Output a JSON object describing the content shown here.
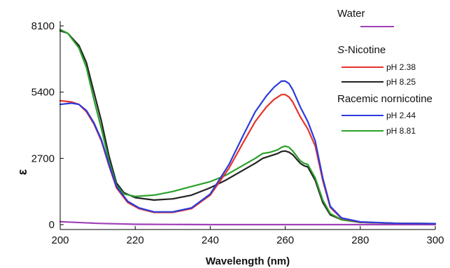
{
  "chart_data": {
    "type": "line",
    "title": "",
    "xlabel": "Wavelength (nm)",
    "ylabel": "ε",
    "xlim": [
      200,
      300
    ],
    "ylim": [
      -200,
      8300
    ],
    "x_ticks": [
      200,
      220,
      240,
      260,
      280,
      300
    ],
    "y_ticks": [
      0,
      2700,
      5400,
      8100
    ],
    "x_tick_labels": [
      "200",
      "220",
      "240",
      "260",
      "280",
      "300"
    ],
    "y_tick_labels": [
      "0",
      "2700",
      "5400",
      "8100"
    ],
    "grid": false,
    "legend_position": "top-right",
    "legend_groups": [
      {
        "heading": "Water",
        "heading_prefix": "",
        "heading_suffix": "",
        "entries": [
          {
            "series": "water",
            "label": ""
          }
        ]
      },
      {
        "heading": "S-Nicotine",
        "heading_prefix": "S",
        "heading_suffix": "-Nicotine",
        "entries": [
          {
            "series": "nic238",
            "label": "pH 2.38"
          },
          {
            "series": "nic825",
            "label": "pH 8.25"
          }
        ]
      },
      {
        "heading": "Racemic nornicotine",
        "heading_prefix": "",
        "heading_suffix": "",
        "entries": [
          {
            "series": "nor244",
            "label": "pH 2.44"
          },
          {
            "series": "nor881",
            "label": "pH 8.81"
          }
        ]
      }
    ],
    "series": [
      {
        "id": "water",
        "name": "Water",
        "color": "#a040b8",
        "x": [
          200,
          210,
          220,
          240,
          260,
          280,
          300
        ],
        "y": [
          120,
          50,
          15,
          0,
          0,
          0,
          0
        ]
      },
      {
        "id": "nic825",
        "name": "pH 8.25",
        "color": "#222222",
        "x": [
          200,
          202,
          205,
          207,
          209,
          211,
          213,
          215,
          217,
          220,
          225,
          230,
          235,
          240,
          244,
          248,
          252,
          254,
          256,
          258,
          259,
          260,
          261,
          262,
          264,
          265,
          266,
          268,
          270,
          272,
          275,
          280,
          290,
          300
        ],
        "y": [
          7900,
          7800,
          7300,
          6600,
          5400,
          4200,
          2800,
          1700,
          1300,
          1100,
          1000,
          1050,
          1200,
          1500,
          1800,
          2150,
          2500,
          2700,
          2800,
          2900,
          2980,
          3000,
          2950,
          2850,
          2500,
          2400,
          2350,
          1800,
          900,
          400,
          200,
          90,
          50,
          40
        ]
      },
      {
        "id": "nor881",
        "name": "pH 8.81",
        "color": "#2ca02c",
        "x": [
          200,
          202,
          205,
          207,
          209,
          211,
          213,
          215,
          217,
          220,
          225,
          230,
          235,
          240,
          244,
          248,
          252,
          254,
          256,
          258,
          259,
          260,
          261,
          262,
          264,
          265,
          266,
          268,
          270,
          272,
          275,
          280,
          290,
          300
        ],
        "y": [
          7950,
          7800,
          7200,
          6400,
          5100,
          3900,
          2600,
          1600,
          1250,
          1150,
          1200,
          1350,
          1550,
          1750,
          2000,
          2350,
          2700,
          2900,
          2950,
          3050,
          3150,
          3200,
          3150,
          3000,
          2600,
          2500,
          2450,
          1900,
          1000,
          450,
          200,
          90,
          50,
          40
        ]
      },
      {
        "id": "nic238",
        "name": "pH 2.38",
        "color": "#e8332a",
        "x": [
          200,
          203,
          205,
          207,
          209,
          211,
          213,
          215,
          218,
          221,
          225,
          230,
          235,
          240,
          245,
          249,
          252,
          255,
          257,
          259,
          260,
          261,
          262,
          264,
          266,
          268,
          270,
          272,
          275,
          280,
          290,
          300
        ],
        "y": [
          5050,
          5000,
          4900,
          4600,
          4100,
          3400,
          2400,
          1500,
          900,
          650,
          500,
          500,
          650,
          1200,
          2300,
          3400,
          4200,
          4800,
          5100,
          5300,
          5300,
          5200,
          5000,
          4400,
          3900,
          3200,
          1800,
          700,
          250,
          100,
          50,
          40
        ]
      },
      {
        "id": "nor244",
        "name": "pH 2.44",
        "color": "#2b3bdc",
        "x": [
          200,
          203,
          205,
          207,
          209,
          211,
          213,
          215,
          218,
          221,
          225,
          230,
          235,
          240,
          245,
          249,
          252,
          255,
          257,
          259,
          260,
          261,
          262,
          264,
          266,
          268,
          270,
          272,
          275,
          280,
          290,
          300
        ],
        "y": [
          4900,
          4950,
          4900,
          4650,
          4150,
          3450,
          2450,
          1550,
          950,
          680,
          520,
          520,
          680,
          1250,
          2450,
          3700,
          4600,
          5250,
          5600,
          5850,
          5850,
          5750,
          5500,
          4800,
          4200,
          3400,
          1900,
          750,
          270,
          110,
          50,
          40
        ]
      }
    ]
  }
}
